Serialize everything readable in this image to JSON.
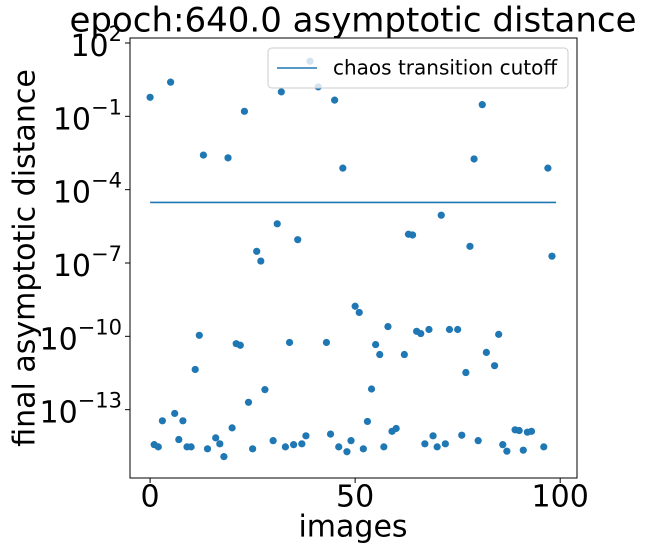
{
  "chart_data": {
    "type": "scatter",
    "title": "epoch:640.0 asymptotic distance",
    "x_label": "images",
    "y_label": "final asymptotic distance",
    "y_scale": "log",
    "legend_position": "upper right",
    "xlim": [
      -4.9,
      104.1
    ],
    "ylim": [
      1.6e-16,
      160
    ],
    "xticks": [
      0,
      50,
      100
    ],
    "yticks": [
      {
        "value": 100,
        "label": "10^2"
      },
      {
        "value": 0.1,
        "label": "10^−1"
      },
      {
        "value": 0.0001,
        "label": "10^−4"
      },
      {
        "value": 1e-07,
        "label": "10^−7"
      },
      {
        "value": 1e-10,
        "label": "10^−10"
      },
      {
        "value": 1e-13,
        "label": "10^−13"
      }
    ],
    "series": [
      {
        "type": "scatter",
        "color": "#1f77b4",
        "x": [
          0,
          1,
          2,
          3,
          5,
          6,
          7,
          8,
          9,
          10,
          11,
          12,
          13,
          14,
          16,
          17,
          18,
          19,
          20,
          21,
          22,
          23,
          24,
          25,
          26,
          27,
          28,
          30,
          31,
          32,
          33,
          34,
          35,
          36,
          37,
          38,
          39,
          41,
          43,
          44,
          45,
          46,
          47,
          48,
          49,
          50,
          51,
          52,
          53,
          54,
          55,
          56,
          57,
          58,
          59,
          60,
          62,
          63,
          64,
          65,
          66,
          67,
          68,
          69,
          70,
          71,
          72,
          73,
          75,
          76,
          77,
          78,
          79,
          80,
          81,
          82,
          84,
          85,
          86,
          87,
          89,
          90,
          91,
          92,
          93,
          96,
          97,
          98
        ],
        "values": [
          0.6,
          3.7e-15,
          3e-15,
          3.5e-14,
          2.5,
          7e-14,
          6e-15,
          3.5e-14,
          3e-15,
          3e-15,
          4.4e-12,
          1.1e-10,
          0.0026,
          2.5e-15,
          7e-15,
          4e-15,
          1.2e-15,
          0.002,
          1.8e-14,
          5e-11,
          4.3e-11,
          0.16,
          2e-13,
          2.5e-15,
          3e-07,
          1.2e-07,
          6.6e-13,
          5.4e-15,
          4e-06,
          1,
          3e-15,
          5.6e-11,
          3.7e-15,
          9e-07,
          4e-15,
          8.5e-15,
          18,
          1.6,
          5.6e-11,
          1e-14,
          0.46,
          3e-15,
          0.00076,
          1.9e-15,
          5.4e-15,
          1.7e-09,
          9.5e-10,
          2.5e-15,
          3.3e-14,
          7e-13,
          4.6e-11,
          1.8e-11,
          3e-15,
          2.5e-10,
          1.3e-14,
          1.7e-14,
          1.8e-11,
          1.5e-06,
          1.4e-06,
          1.6e-10,
          1.3e-10,
          4e-15,
          1.9e-10,
          8.5e-15,
          3e-15,
          9e-06,
          4e-15,
          1.9e-10,
          1.9e-10,
          9e-15,
          3.3e-12,
          4.8e-07,
          0.0018,
          5.4e-15,
          0.3,
          2.2e-11,
          6.3e-12,
          1.2e-10,
          3.7e-15,
          2e-15,
          1.5e-14,
          1.4e-14,
          2.2e-15,
          1.2e-14,
          1.3e-14,
          3e-15,
          0.00076,
          1.9e-07
        ]
      },
      {
        "type": "line",
        "name": "chaos transition cutoff",
        "color": "#1f77b4",
        "x": [
          0,
          99
        ],
        "values": [
          3e-05,
          3e-05
        ]
      }
    ]
  }
}
